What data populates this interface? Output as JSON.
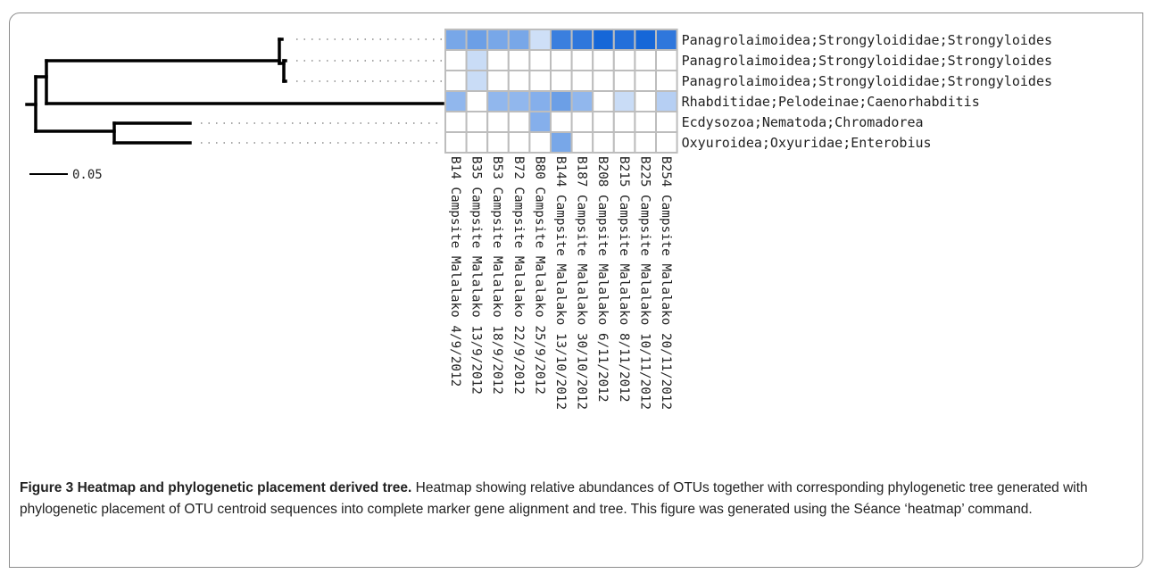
{
  "figure": {
    "scale_bar_label": "0.05",
    "otus": [
      "Panagrolaimoidea;Strongyloididae;Strongyloides",
      "Panagrolaimoidea;Strongyloididae;Strongyloides",
      "Panagrolaimoidea;Strongyloididae;Strongyloides",
      "Rhabditidae;Pelodeinae;Caenorhabditis",
      "Ecdysozoa;Nematoda;Chromadorea",
      "Oxyuroidea;Oxyuridae;Enterobius"
    ],
    "samples": [
      "B14 Campsite Malalako 4/9/2012",
      "B35 Campsite Malalako 13/9/2012",
      "B53 Campsite Malalako 18/9/2012",
      "B72 Campsite Malalako 22/9/2012",
      "B80 Campsite Malalako 25/9/2012",
      "B144 Campsite Malalako 13/10/2012",
      "B187 Campsite Malalako 30/10/2012",
      "B208 Campsite Malalako 6/11/2012",
      "B215 Campsite Malalako 8/11/2012",
      "B225 Campsite Malalako 10/11/2012",
      "B254 Campsite Malalako 20/11/2012"
    ],
    "chart_data": {
      "type": "heatmap",
      "rows": [
        "Panagrolaimoidea;Strongyloididae;Strongyloides",
        "Panagrolaimoidea;Strongyloididae;Strongyloides",
        "Panagrolaimoidea;Strongyloididae;Strongyloides",
        "Rhabditidae;Pelodeinae;Caenorhabditis",
        "Ecdysozoa;Nematoda;Chromadorea",
        "Oxyuroidea;Oxyuridae;Enterobius"
      ],
      "columns": [
        "B14 Campsite Malalako 4/9/2012",
        "B35 Campsite Malalako 13/9/2012",
        "B53 Campsite Malalako 18/9/2012",
        "B72 Campsite Malalako 22/9/2012",
        "B80 Campsite Malalako 25/9/2012",
        "B144 Campsite Malalako 13/10/2012",
        "B187 Campsite Malalako 30/10/2012",
        "B208 Campsite Malalako 6/11/2012",
        "B215 Campsite Malalako 8/11/2012",
        "B225 Campsite Malalako 10/11/2012",
        "B254 Campsite Malalako 20/11/2012"
      ],
      "values": [
        [
          0.55,
          0.6,
          0.55,
          0.55,
          0.2,
          0.8,
          0.85,
          0.95,
          0.9,
          0.95,
          0.85
        ],
        [
          0,
          0.22,
          0,
          0,
          0,
          0,
          0,
          0,
          0,
          0,
          0
        ],
        [
          0,
          0.22,
          0,
          0,
          0,
          0,
          0,
          0,
          0,
          0,
          0
        ],
        [
          0.45,
          0,
          0.45,
          0.45,
          0.5,
          0.6,
          0.45,
          0,
          0.22,
          0,
          0.3
        ],
        [
          0,
          0,
          0,
          0,
          0.5,
          0,
          0,
          0,
          0,
          0,
          0
        ],
        [
          0,
          0,
          0,
          0,
          0,
          0.55,
          0,
          0,
          0,
          0,
          0
        ]
      ],
      "color_low": "#ffffff",
      "color_high": "#0a5fd6",
      "cell_border": "#bdbdbd"
    }
  },
  "caption": {
    "label": "Figure 3",
    "title": "Heatmap and phylogenetic placement derived tree.",
    "text": "Heatmap showing relative abundances of OTUs together with corresponding phylogenetic tree generated with phylogenetic placement of OTU centroid sequences into complete marker gene alignment and tree. This figure was generated using the Séance ‘heatmap’ command."
  }
}
